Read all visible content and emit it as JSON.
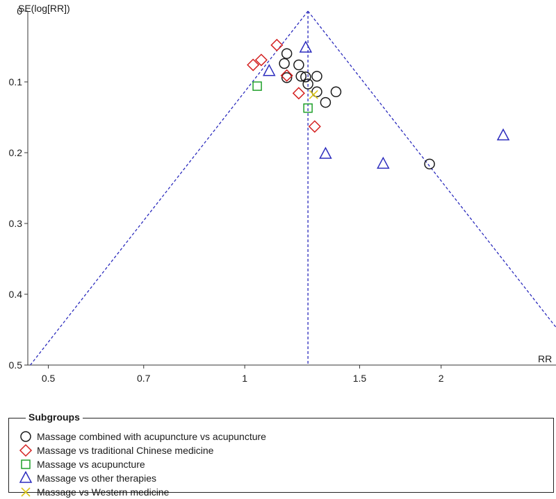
{
  "chart_data": {
    "type": "scatter",
    "ylabel": "SE(log[RR])",
    "xlabel": "RR",
    "x_scale": "log",
    "y_reversed": true,
    "xlim": [
      0.465,
      3.0
    ],
    "ylim": [
      0,
      0.5
    ],
    "x_ticks": [
      {
        "v": 0.5,
        "label": "0.5"
      },
      {
        "v": 0.7,
        "label": "0.7"
      },
      {
        "v": 1,
        "label": "1"
      },
      {
        "v": 1.5,
        "label": "1.5"
      },
      {
        "v": 2,
        "label": "2"
      }
    ],
    "y_ticks": [
      {
        "v": 0,
        "label": "0"
      },
      {
        "v": 0.1,
        "label": "0.1"
      },
      {
        "v": 0.2,
        "label": "0.2"
      },
      {
        "v": 0.3,
        "label": "0.3"
      },
      {
        "v": 0.4,
        "label": "0.4"
      },
      {
        "v": 0.5,
        "label": "0.5"
      }
    ],
    "pooled_rr": 1.25,
    "funnel_color": "#2b2bbd",
    "legend_title": "Subgroups",
    "series": [
      {
        "name": "Massage combined with acupuncture vs acupuncture",
        "marker": "circle",
        "color": "#1a1a1a",
        "points": [
          [
            1.16,
            0.06
          ],
          [
            1.15,
            0.074
          ],
          [
            1.21,
            0.076
          ],
          [
            1.16,
            0.094
          ],
          [
            1.22,
            0.092
          ],
          [
            1.24,
            0.093
          ],
          [
            1.29,
            0.092
          ],
          [
            1.25,
            0.103
          ],
          [
            1.29,
            0.114
          ],
          [
            1.38,
            0.114
          ],
          [
            1.33,
            0.129
          ],
          [
            1.92,
            0.216
          ]
        ]
      },
      {
        "name": "Massage vs traditional Chinese medicine",
        "marker": "diamond",
        "color": "#d42020",
        "points": [
          [
            1.12,
            0.048
          ],
          [
            1.06,
            0.069
          ],
          [
            1.03,
            0.076
          ],
          [
            1.16,
            0.091
          ],
          [
            1.21,
            0.116
          ],
          [
            1.28,
            0.163
          ]
        ]
      },
      {
        "name": "Massage vs acupuncture",
        "marker": "square",
        "color": "#1fa02a",
        "points": [
          [
            1.045,
            0.106
          ],
          [
            1.25,
            0.137
          ]
        ]
      },
      {
        "name": "Massage vs other therapies",
        "marker": "triangle",
        "color": "#2b2bbd",
        "points": [
          [
            1.24,
            0.052
          ],
          [
            1.09,
            0.085
          ],
          [
            1.33,
            0.202
          ],
          [
            1.63,
            0.216
          ],
          [
            2.49,
            0.176
          ]
        ]
      },
      {
        "name": "Massage vs Western medicine",
        "marker": "cross",
        "color": "#d9c418",
        "points": [
          [
            1.275,
            0.118
          ]
        ]
      }
    ]
  }
}
